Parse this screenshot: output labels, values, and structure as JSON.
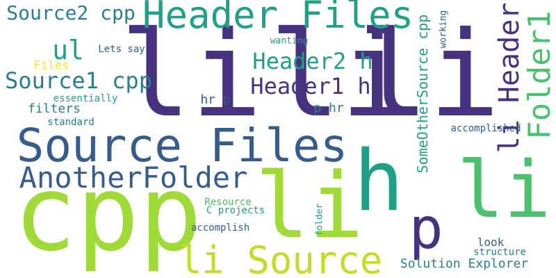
{
  "palette": {
    "background": "#ffffff",
    "dark_purple": "#46327e",
    "blue": "#365c8d",
    "teal_blue": "#277f8e",
    "teal": "#1fa187",
    "green": "#4ac16d",
    "lime": "#a0da39",
    "yellow": "#fde725"
  },
  "words": [
    {
      "id": "li-1",
      "text": "li"
    },
    {
      "id": "li-2",
      "text": "li"
    },
    {
      "id": "li-3",
      "text": "li"
    },
    {
      "id": "cpp",
      "text": "cpp"
    },
    {
      "id": "li-4",
      "text": "li"
    },
    {
      "id": "h",
      "text": "h"
    },
    {
      "id": "source-files",
      "text": "Source Files"
    },
    {
      "id": "header-files",
      "text": "Header Files"
    },
    {
      "id": "li-source",
      "text": "li Source"
    },
    {
      "id": "another-folder",
      "text": "AnotherFolder"
    },
    {
      "id": "folder1",
      "text": "Folder1"
    },
    {
      "id": "li-header",
      "text": "li Header"
    },
    {
      "id": "p",
      "text": "p"
    },
    {
      "id": "source2-cpp",
      "text": "Source2 cpp"
    },
    {
      "id": "source1-cpp",
      "text": "Source1 cpp"
    },
    {
      "id": "header1-h",
      "text": "Header1 h"
    },
    {
      "id": "header2-h",
      "text": "Header2 h"
    },
    {
      "id": "ul",
      "text": "ul"
    },
    {
      "id": "someothersource-cpp",
      "text": "SomeOtherSource cpp"
    },
    {
      "id": "solution-explorer",
      "text": "Solution Explorer"
    },
    {
      "id": "hr-p",
      "text": "hr p"
    },
    {
      "id": "p-hr",
      "text": "p hr"
    },
    {
      "id": "filters",
      "text": "filters"
    },
    {
      "id": "files",
      "text": "Files"
    },
    {
      "id": "lets-say",
      "text": "Lets say"
    },
    {
      "id": "essentially",
      "text": "essentially"
    },
    {
      "id": "standard",
      "text": "standard"
    },
    {
      "id": "accomplished",
      "text": "accomplished"
    },
    {
      "id": "look",
      "text": "look"
    },
    {
      "id": "structure",
      "text": "structure"
    },
    {
      "id": "resource",
      "text": "Resource"
    },
    {
      "id": "c-projects",
      "text": "C projects"
    },
    {
      "id": "accomplish",
      "text": "accomplish"
    },
    {
      "id": "wanting",
      "text": "wanting"
    },
    {
      "id": "working",
      "text": "working"
    },
    {
      "id": "folder",
      "text": "folder"
    }
  ]
}
